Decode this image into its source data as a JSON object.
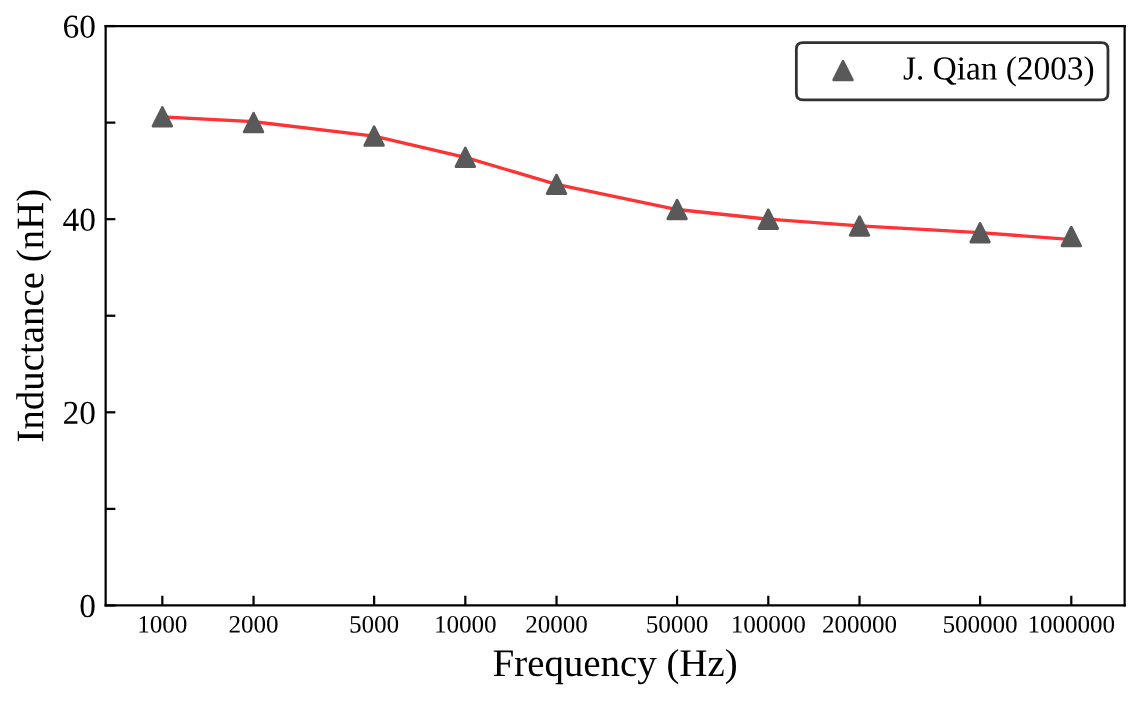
{
  "chart_data": {
    "type": "scatter",
    "xlabel": "Frequency (Hz)",
    "ylabel": "Inductance (nH)",
    "log": "x",
    "x": [
      1000,
      2000,
      5000,
      10000,
      20000,
      50000,
      100000,
      200000,
      500000,
      1000000
    ],
    "series": [
      {
        "name": "J. Qian (2003)",
        "marker": "triangle",
        "color": "#595959",
        "values": [
          50.6,
          50.0,
          48.6,
          46.4,
          43.6,
          41.0,
          40.0,
          39.3,
          38.6,
          38.2
        ]
      },
      {
        "type": "line",
        "line_style": "solid",
        "color": "#ff3333",
        "values": [
          50.6,
          50.1,
          48.6,
          46.4,
          43.6,
          41.0,
          40.0,
          39.3,
          38.6,
          37.9
        ]
      }
    ],
    "xlim": [
      650,
      1500000
    ],
    "xticks": [
      1000,
      2000,
      5000,
      10000,
      20000,
      50000,
      100000,
      200000,
      500000,
      1000000
    ],
    "ylim": [
      0,
      60
    ],
    "yticks": [
      0,
      {
        "value": 10,
        "label": null
      },
      20,
      {
        "value": 30,
        "label": null
      },
      40,
      {
        "value": 50,
        "label": null
      },
      60
    ],
    "grid": false,
    "legend": "top right"
  }
}
